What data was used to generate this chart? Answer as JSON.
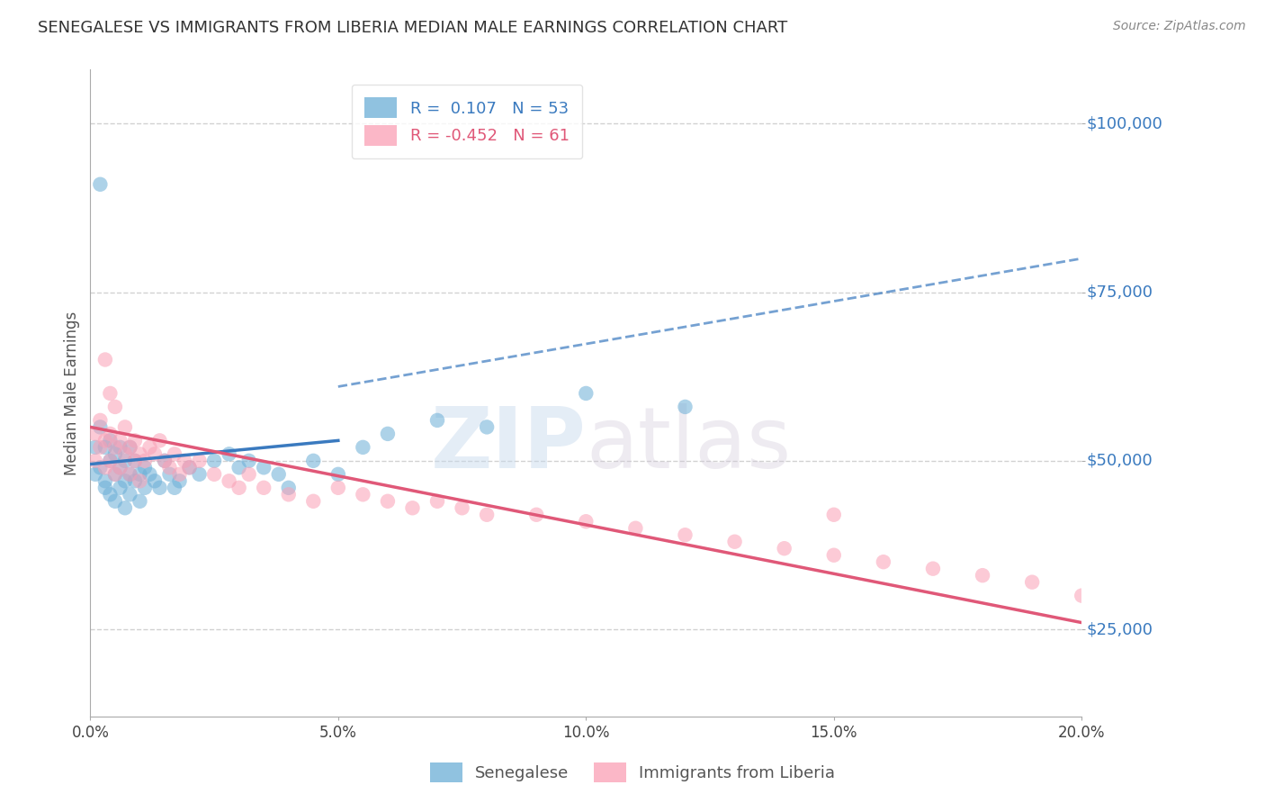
{
  "title": "SENEGALESE VS IMMIGRANTS FROM LIBERIA MEDIAN MALE EARNINGS CORRELATION CHART",
  "source": "Source: ZipAtlas.com",
  "ylabel": "Median Male Earnings",
  "xlim": [
    0.0,
    0.2
  ],
  "ylim": [
    12000,
    108000
  ],
  "yticks": [
    25000,
    50000,
    75000,
    100000
  ],
  "ytick_labels": [
    "$25,000",
    "$50,000",
    "$75,000",
    "$100,000"
  ],
  "xticks": [
    0.0,
    0.05,
    0.1,
    0.15,
    0.2
  ],
  "xtick_labels": [
    "0.0%",
    "5.0%",
    "10.0%",
    "15.0%",
    "20.0%"
  ],
  "senegalese_color": "#6baed6",
  "liberia_color": "#fa9fb5",
  "trendline_blue": "#3a7abf",
  "trendline_pink": "#e05878",
  "R_senegalese": 0.107,
  "N_senegalese": 53,
  "R_liberia": -0.452,
  "N_liberia": 61,
  "watermark_zip": "ZIP",
  "watermark_atlas": "atlas",
  "background_color": "#ffffff",
  "grid_color": "#cccccc",
  "legend_labels": [
    "Senegalese",
    "Immigrants from Liberia"
  ],
  "title_color": "#333333",
  "axis_label_color": "#555555",
  "ytick_label_color": "#3a7abf",
  "source_color": "#888888",
  "senegalese_x": [
    0.001,
    0.001,
    0.002,
    0.002,
    0.003,
    0.003,
    0.003,
    0.004,
    0.004,
    0.004,
    0.005,
    0.005,
    0.005,
    0.006,
    0.006,
    0.006,
    0.007,
    0.007,
    0.007,
    0.008,
    0.008,
    0.008,
    0.009,
    0.009,
    0.01,
    0.01,
    0.011,
    0.011,
    0.012,
    0.013,
    0.014,
    0.015,
    0.016,
    0.017,
    0.018,
    0.02,
    0.022,
    0.025,
    0.028,
    0.03,
    0.032,
    0.035,
    0.038,
    0.04,
    0.045,
    0.05,
    0.055,
    0.06,
    0.07,
    0.08,
    0.1,
    0.12,
    0.002
  ],
  "senegalese_y": [
    52000,
    48000,
    55000,
    49000,
    47000,
    52000,
    46000,
    50000,
    53000,
    45000,
    48000,
    51000,
    44000,
    49000,
    52000,
    46000,
    47000,
    50000,
    43000,
    48000,
    52000,
    45000,
    47000,
    50000,
    48000,
    44000,
    49000,
    46000,
    48000,
    47000,
    46000,
    50000,
    48000,
    46000,
    47000,
    49000,
    48000,
    50000,
    51000,
    49000,
    50000,
    49000,
    48000,
    46000,
    50000,
    48000,
    52000,
    54000,
    56000,
    55000,
    60000,
    58000,
    91000
  ],
  "liberia_x": [
    0.001,
    0.001,
    0.002,
    0.002,
    0.003,
    0.003,
    0.004,
    0.004,
    0.005,
    0.005,
    0.006,
    0.006,
    0.007,
    0.007,
    0.008,
    0.008,
    0.009,
    0.009,
    0.01,
    0.01,
    0.011,
    0.012,
    0.013,
    0.014,
    0.015,
    0.016,
    0.017,
    0.018,
    0.019,
    0.02,
    0.022,
    0.025,
    0.028,
    0.03,
    0.032,
    0.035,
    0.04,
    0.045,
    0.05,
    0.055,
    0.06,
    0.065,
    0.07,
    0.075,
    0.08,
    0.09,
    0.1,
    0.11,
    0.12,
    0.13,
    0.14,
    0.15,
    0.16,
    0.17,
    0.18,
    0.19,
    0.2,
    0.003,
    0.004,
    0.005,
    0.15
  ],
  "liberia_y": [
    54000,
    50000,
    56000,
    52000,
    53000,
    49000,
    54000,
    50000,
    52000,
    48000,
    53000,
    49000,
    55000,
    51000,
    52000,
    48000,
    53000,
    50000,
    51000,
    47000,
    50000,
    52000,
    51000,
    53000,
    50000,
    49000,
    51000,
    48000,
    50000,
    49000,
    50000,
    48000,
    47000,
    46000,
    48000,
    46000,
    45000,
    44000,
    46000,
    45000,
    44000,
    43000,
    44000,
    43000,
    42000,
    42000,
    41000,
    40000,
    39000,
    38000,
    37000,
    36000,
    35000,
    34000,
    33000,
    32000,
    30000,
    65000,
    60000,
    58000,
    42000
  ],
  "trendline_sen_x0": 0.0,
  "trendline_sen_y0": 49500,
  "trendline_sen_x1": 0.05,
  "trendline_sen_y1": 53000,
  "trendline_sen_dash_x0": 0.05,
  "trendline_sen_dash_y0": 61000,
  "trendline_sen_dash_x1": 0.2,
  "trendline_sen_dash_y1": 80000,
  "trendline_lib_x0": 0.0,
  "trendline_lib_y0": 55000,
  "trendline_lib_x1": 0.2,
  "trendline_lib_y1": 26000
}
